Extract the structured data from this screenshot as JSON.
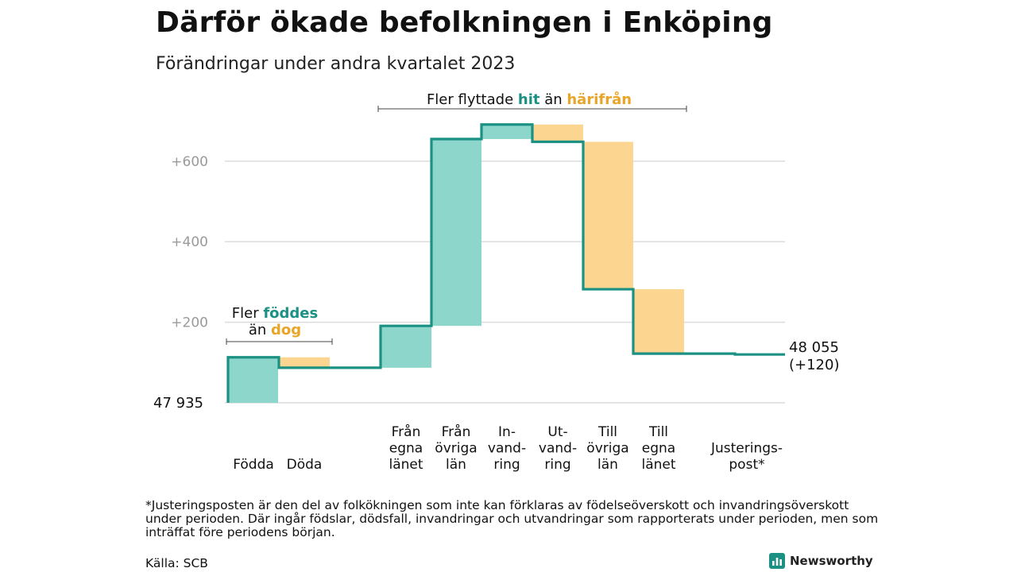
{
  "title": "Därför ökade befolkningen i Enköping",
  "subtitle": "Förändringar under andra kvartalet 2023",
  "footnote": "*Justeringsposten är den del av folkökningen som inte kan förklaras av födelseöverskott och invandringsöverskott under perioden. Där ingår födslar, dödsfall, invandringar och utvandringar som rapporterats under perioden, men som inträffat före periodens början.",
  "source": "Källa: SCB",
  "brand": "Newsworthy",
  "colors": {
    "increase": "#8dd6cb",
    "decrease": "#fcd590",
    "line": "#1b9183",
    "grid": "#dcdcdc",
    "teal_text": "#1b9183",
    "orange_text": "#e9a528"
  },
  "icons": {
    "brand_logo": "bar-chart-icon"
  },
  "chart_data": {
    "type": "waterfall",
    "start_value": 47935,
    "start_label": "47  935",
    "end_label_value": "48 055",
    "end_label_change": "(+120)",
    "yticks": [
      {
        "value": 200,
        "label": "+200"
      },
      {
        "value": 400,
        "label": "+400"
      },
      {
        "value": 600,
        "label": "+600"
      }
    ],
    "ylim": [
      0,
      700
    ],
    "grid": true,
    "steps": [
      {
        "label_lines": [
          "Födda"
        ],
        "delta": 113,
        "kind": "increase"
      },
      {
        "label_lines": [
          "Döda"
        ],
        "delta": -26,
        "kind": "decrease"
      },
      {
        "label_lines": [
          "Från",
          "egna",
          "länet"
        ],
        "delta": 104,
        "kind": "increase"
      },
      {
        "label_lines": [
          "Från",
          "övriga",
          "län"
        ],
        "delta": 464,
        "kind": "increase"
      },
      {
        "label_lines": [
          "In-",
          "vand-",
          "ring"
        ],
        "delta": 36,
        "kind": "increase"
      },
      {
        "label_lines": [
          "Ut-",
          "vand-",
          "ring"
        ],
        "delta": -43,
        "kind": "decrease"
      },
      {
        "label_lines": [
          "Till",
          "övriga",
          "län"
        ],
        "delta": -366,
        "kind": "decrease"
      },
      {
        "label_lines": [
          "Till",
          "egna",
          "länet"
        ],
        "delta": -160,
        "kind": "decrease"
      },
      {
        "label_lines": [
          "Justerings-",
          "post*"
        ],
        "delta": -2,
        "kind": "adjustment"
      }
    ],
    "annotations": [
      {
        "name": "births-annotation",
        "lines": [
          [
            [
              "Fler ",
              "plain"
            ],
            [
              "föddes",
              "teal"
            ]
          ],
          [
            [
              "än ",
              "plain"
            ],
            [
              "dog",
              "orange"
            ]
          ]
        ]
      },
      {
        "name": "migration-annotation",
        "lines": [
          [
            [
              "Fler flyttade ",
              "plain"
            ],
            [
              "hit",
              "teal"
            ],
            [
              "  än ",
              "plain"
            ],
            [
              "härifrån",
              "orange"
            ]
          ]
        ]
      }
    ]
  }
}
